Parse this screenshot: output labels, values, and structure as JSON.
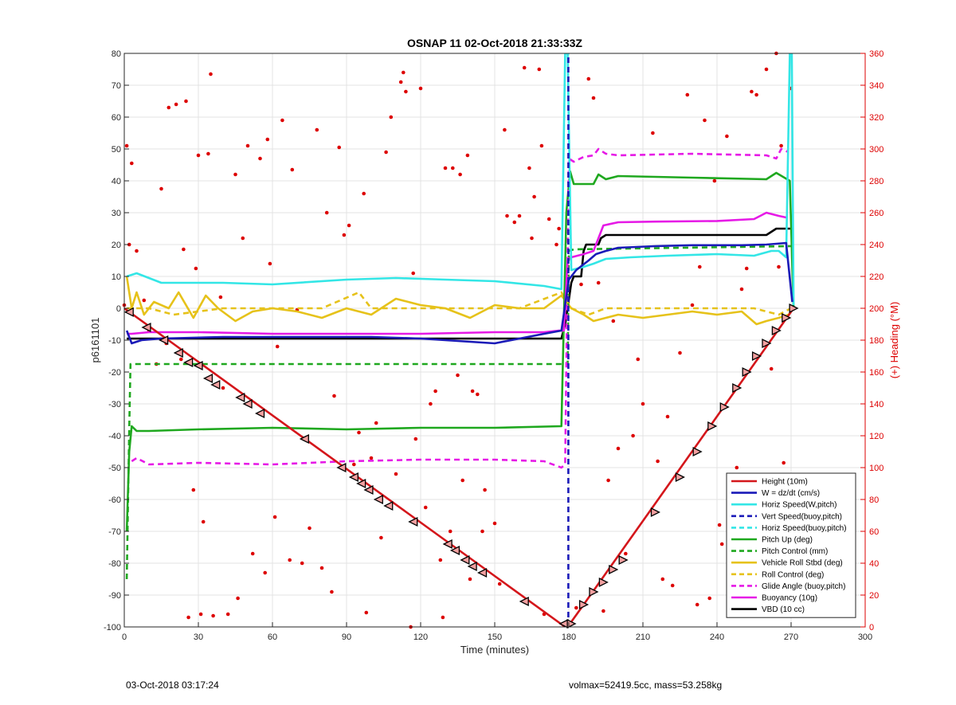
{
  "figure": {
    "footer_left": "03-Oct-2018 03:17:24",
    "footer_right": "volmax=52419.5cc, mass=53.258kg"
  },
  "chart_data": {
    "type": "line",
    "title": "OSNAP 11 02-Oct-2018 21:33:33Z",
    "xlabel": "Time (minutes)",
    "ylabel": "p6161101",
    "y2label": "(+) Heading (°M)",
    "xlim": [
      0,
      300
    ],
    "ylim": [
      -100,
      80
    ],
    "y2lim": [
      0,
      360
    ],
    "xticks": [
      0,
      30,
      60,
      90,
      120,
      150,
      180,
      210,
      240,
      270,
      300
    ],
    "yticks": [
      -100,
      -90,
      -80,
      -70,
      -60,
      -50,
      -40,
      -30,
      -20,
      -10,
      0,
      10,
      20,
      30,
      40,
      50,
      60,
      70,
      80
    ],
    "y2ticks": [
      0,
      20,
      40,
      60,
      80,
      100,
      120,
      140,
      160,
      180,
      200,
      220,
      240,
      260,
      280,
      300,
      320,
      340,
      360
    ],
    "grid": true,
    "legend_position": "bottom-right",
    "colors": {
      "height": "#d4161b",
      "w": "#1a1ab8",
      "horiz": "#33e6e6",
      "pitch": "#1fa81f",
      "roll": "#e6c21a",
      "glide": "#e61ae6",
      "vbd": "#000000",
      "heading": "#dd0000",
      "right_axis": "#dd0000"
    },
    "series": [
      {
        "name": "Height (10m)",
        "color": "#d4161b",
        "style": "solid",
        "x": [
          0,
          178.5,
          179.5,
          186,
          271
        ],
        "y": [
          0,
          -100,
          -100,
          -93,
          0
        ]
      },
      {
        "name": "W = dz/dt (cm/s)",
        "color": "#1a1ab8",
        "style": "solid",
        "x": [
          1,
          3,
          7,
          15,
          40,
          70,
          100,
          120,
          140,
          150,
          160,
          170,
          177,
          180,
          183,
          188,
          191,
          195,
          200,
          215,
          230,
          250,
          260,
          268,
          270.5
        ],
        "y": [
          -7,
          -11,
          -10,
          -9.5,
          -9,
          -9,
          -9,
          -9.5,
          -10.5,
          -11,
          -9.5,
          -8,
          -7,
          9,
          12,
          15,
          17,
          18,
          19,
          19.5,
          19.8,
          19.8,
          20,
          20.5,
          2
        ]
      },
      {
        "name": "Horiz Speed(W,pitch)",
        "color": "#33e6e6",
        "style": "solid",
        "x": [
          1,
          5,
          15,
          40,
          60,
          90,
          110,
          130,
          150,
          170,
          177,
          178.5,
          179.5,
          181,
          186,
          190,
          195,
          205,
          220,
          240,
          255,
          262,
          265,
          268,
          269.5,
          270.3,
          271
        ],
        "y": [
          10,
          11,
          8,
          8,
          7.5,
          9,
          9.5,
          9,
          8.5,
          7,
          6,
          80,
          80,
          12,
          13,
          14,
          15.5,
          16,
          16.5,
          17,
          16.5,
          18,
          18,
          16,
          80,
          80,
          1
        ]
      },
      {
        "name": "Vert Speed(buoy,pitch)",
        "color": "#1a1ab8",
        "style": "dashed",
        "x": [
          179.8,
          179.8
        ],
        "y": [
          -100,
          80
        ]
      },
      {
        "name": "Horiz Speed(buoy,pitch)",
        "color": "#33e6e6",
        "style": "dashed",
        "x": [
          179.3,
          180.3
        ],
        "y": [
          80,
          80
        ]
      },
      {
        "name": "Pitch Up (deg)",
        "color": "#1fa81f",
        "style": "solid",
        "x": [
          1,
          2,
          3,
          5,
          10,
          30,
          60,
          90,
          120,
          150,
          177,
          179,
          180.5,
          182,
          186,
          190,
          192,
          195,
          200,
          230,
          260,
          264,
          269.5,
          271
        ],
        "y": [
          -70,
          -45,
          -37,
          -38.5,
          -38.5,
          -38,
          -37.5,
          -38,
          -37.5,
          -37.5,
          -37,
          30,
          43,
          39,
          39,
          39,
          42,
          40.5,
          41.5,
          41,
          40.5,
          42.5,
          40,
          0
        ]
      },
      {
        "name": "Pitch Control (mm)",
        "color": "#1fa81f",
        "style": "dashed",
        "x": [
          1,
          2,
          2.5,
          178,
          179.5,
          180,
          182,
          270
        ],
        "y": [
          -85,
          -38,
          -17.5,
          -17.5,
          -17.5,
          18,
          18.5,
          19.5
        ]
      },
      {
        "name": "Vehicle Roll Stbd (deg)",
        "color": "#e6c21a",
        "style": "solid",
        "x": [
          1,
          3,
          5,
          8,
          12,
          18,
          22,
          28,
          33,
          38,
          45,
          52,
          60,
          70,
          80,
          90,
          100,
          110,
          120,
          130,
          140,
          150,
          160,
          170,
          177,
          181,
          186,
          190,
          195,
          200,
          210,
          220,
          230,
          240,
          250,
          256,
          260,
          265,
          269,
          271
        ],
        "y": [
          10,
          0,
          5,
          -2,
          2,
          0,
          5,
          -3,
          4,
          0,
          -4,
          -1,
          0,
          -1,
          -3,
          0,
          -2,
          3,
          1,
          0,
          -3,
          1,
          0,
          0,
          4,
          0,
          -2,
          -4,
          -3,
          -2,
          -3,
          -2,
          -1,
          -2,
          -1,
          -5,
          -4,
          -3,
          -2,
          0
        ]
      },
      {
        "name": "Roll Control (deg)",
        "color": "#e6c21a",
        "style": "dashed",
        "x": [
          1,
          10,
          20,
          40,
          60,
          80,
          95,
          100,
          120,
          140,
          160,
          177,
          181,
          188,
          195,
          200,
          220,
          240,
          255,
          265,
          270
        ],
        "y": [
          0,
          0,
          -2,
          0,
          0,
          0,
          5,
          0,
          0,
          0,
          0,
          5,
          0,
          -2,
          0,
          0,
          0,
          0,
          0,
          -2,
          0
        ]
      },
      {
        "name": "Glide Angle (buoy,pitch)",
        "color": "#e61ae6",
        "style": "dashed",
        "x": [
          3,
          5,
          10,
          30,
          60,
          90,
          120,
          150,
          170,
          177,
          178.5,
          180,
          182,
          186,
          190,
          192,
          195,
          200,
          230,
          260,
          264,
          266,
          269
        ],
        "y": [
          -48,
          -47,
          -49,
          -48.5,
          -49,
          -48,
          -47.5,
          -47.5,
          -48,
          -50,
          -49,
          47,
          46,
          47.5,
          48,
          50,
          48.5,
          48,
          48.5,
          48,
          47,
          50,
          49
        ]
      },
      {
        "name": "Buoyancy (10g)",
        "color": "#e61ae6",
        "style": "solid",
        "x": [
          1,
          3,
          10,
          30,
          60,
          90,
          120,
          150,
          170,
          176,
          178,
          179.5,
          181,
          186,
          190,
          194,
          200,
          215,
          240,
          255,
          260,
          265,
          268
        ],
        "y": [
          -8,
          -8,
          -7.5,
          -7.5,
          -8,
          -8,
          -8,
          -7.5,
          -7.5,
          -7,
          -7,
          15,
          16,
          17,
          18,
          26,
          27,
          27.2,
          27.4,
          28,
          30,
          29,
          28.5
        ]
      },
      {
        "name": "VBD (10 cc)",
        "color": "#000000",
        "style": "solid",
        "x": [
          1,
          177,
          178.5,
          179.5,
          181,
          182,
          185,
          186,
          187,
          188,
          192,
          193,
          195,
          260,
          262,
          264,
          270
        ],
        "y": [
          -9.5,
          -9.5,
          -5,
          0,
          8,
          10,
          10,
          18,
          20,
          20,
          20,
          22,
          23,
          23,
          24,
          25,
          25
        ]
      },
      {
        "name": "",
        "color": "#d4161b",
        "style": "dashed",
        "x": [
          0,
          270
        ],
        "y": [
          -6.2,
          -6.2
        ]
      }
    ],
    "height_markers": {
      "left": [
        [
          2,
          -1.2
        ],
        [
          9,
          -6
        ],
        [
          16,
          -10
        ],
        [
          22,
          -14
        ],
        [
          26,
          -17
        ],
        [
          30,
          -18
        ],
        [
          34,
          -22
        ],
        [
          37,
          -24
        ],
        [
          47,
          -28
        ],
        [
          50,
          -30
        ],
        [
          55,
          -33
        ],
        [
          73,
          -41
        ],
        [
          88,
          -50
        ],
        [
          93,
          -53
        ],
        [
          96,
          -55
        ],
        [
          99,
          -57
        ],
        [
          103,
          -60
        ],
        [
          107,
          -62
        ],
        [
          117,
          -67
        ],
        [
          131,
          -74
        ],
        [
          134,
          -76
        ],
        [
          138,
          -79
        ],
        [
          141,
          -81
        ],
        [
          145,
          -83
        ],
        [
          162,
          -92
        ],
        [
          178,
          -99
        ]
      ],
      "right": [
        [
          181,
          -99
        ],
        [
          186,
          -93
        ],
        [
          190,
          -89
        ],
        [
          194,
          -86
        ],
        [
          198,
          -82
        ],
        [
          202,
          -79
        ],
        [
          215,
          -64
        ],
        [
          225,
          -53
        ],
        [
          232,
          -45
        ],
        [
          238,
          -37
        ],
        [
          243,
          -31
        ],
        [
          248,
          -25
        ],
        [
          252,
          -20
        ],
        [
          256,
          -15
        ],
        [
          260,
          -11
        ],
        [
          264,
          -7
        ],
        [
          268,
          -3
        ],
        [
          271,
          0
        ]
      ]
    },
    "heading_points": [
      [
        0,
        202
      ],
      [
        1,
        302
      ],
      [
        2,
        240
      ],
      [
        3,
        291
      ],
      [
        5,
        236
      ],
      [
        8,
        205
      ],
      [
        10,
        186
      ],
      [
        13,
        165
      ],
      [
        15,
        275
      ],
      [
        17,
        178
      ],
      [
        18,
        326
      ],
      [
        21,
        328
      ],
      [
        23,
        168
      ],
      [
        24,
        237
      ],
      [
        25,
        330
      ],
      [
        26,
        6
      ],
      [
        28,
        86
      ],
      [
        29,
        225
      ],
      [
        30,
        296
      ],
      [
        31,
        8
      ],
      [
        32,
        66
      ],
      [
        34,
        297
      ],
      [
        35,
        347
      ],
      [
        36,
        7
      ],
      [
        39,
        207
      ],
      [
        40,
        150
      ],
      [
        42,
        8
      ],
      [
        45,
        284
      ],
      [
        46,
        18
      ],
      [
        48,
        244
      ],
      [
        50,
        302
      ],
      [
        52,
        46
      ],
      [
        55,
        294
      ],
      [
        57,
        34
      ],
      [
        58,
        306
      ],
      [
        59,
        228
      ],
      [
        61,
        69
      ],
      [
        62,
        176
      ],
      [
        64,
        318
      ],
      [
        67,
        42
      ],
      [
        68,
        287
      ],
      [
        70,
        199
      ],
      [
        72,
        40
      ],
      [
        75,
        62
      ],
      [
        78,
        312
      ],
      [
        80,
        37
      ],
      [
        82,
        260
      ],
      [
        84,
        22
      ],
      [
        85,
        145
      ],
      [
        87,
        301
      ],
      [
        89,
        246
      ],
      [
        91,
        252
      ],
      [
        93,
        102
      ],
      [
        95,
        122
      ],
      [
        97,
        272
      ],
      [
        98,
        9
      ],
      [
        100,
        106
      ],
      [
        102,
        128
      ],
      [
        104,
        56
      ],
      [
        106,
        298
      ],
      [
        108,
        320
      ],
      [
        110,
        96
      ],
      [
        112,
        342
      ],
      [
        113,
        348
      ],
      [
        114,
        336
      ],
      [
        116,
        0
      ],
      [
        117,
        222
      ],
      [
        118,
        118
      ],
      [
        120,
        338
      ],
      [
        122,
        75
      ],
      [
        124,
        140
      ],
      [
        126,
        148
      ],
      [
        128,
        42
      ],
      [
        129,
        6
      ],
      [
        130,
        288
      ],
      [
        132,
        60
      ],
      [
        133,
        288
      ],
      [
        135,
        158
      ],
      [
        136,
        284
      ],
      [
        137,
        92
      ],
      [
        139,
        296
      ],
      [
        140,
        30
      ],
      [
        141,
        148
      ],
      [
        143,
        146
      ],
      [
        145,
        60
      ],
      [
        146,
        86
      ],
      [
        150,
        65
      ],
      [
        152,
        27
      ],
      [
        154,
        312
      ],
      [
        155,
        258
      ],
      [
        158,
        254
      ],
      [
        160,
        258
      ],
      [
        162,
        351
      ],
      [
        164,
        288
      ],
      [
        165,
        244
      ],
      [
        166,
        270
      ],
      [
        168,
        350
      ],
      [
        169,
        302
      ],
      [
        170,
        8
      ],
      [
        172,
        256
      ],
      [
        175,
        240
      ],
      [
        176,
        250
      ],
      [
        183,
        12
      ],
      [
        185,
        215
      ],
      [
        188,
        344
      ],
      [
        190,
        332
      ],
      [
        192,
        216
      ],
      [
        194,
        10
      ],
      [
        196,
        92
      ],
      [
        198,
        192
      ],
      [
        200,
        112
      ],
      [
        203,
        46
      ],
      [
        206,
        120
      ],
      [
        208,
        168
      ],
      [
        210,
        140
      ],
      [
        214,
        310
      ],
      [
        216,
        104
      ],
      [
        218,
        30
      ],
      [
        220,
        132
      ],
      [
        222,
        26
      ],
      [
        225,
        172
      ],
      [
        228,
        334
      ],
      [
        230,
        202
      ],
      [
        232,
        14
      ],
      [
        233,
        226
      ],
      [
        235,
        318
      ],
      [
        237,
        18
      ],
      [
        239,
        280
      ],
      [
        241,
        64
      ],
      [
        242,
        52
      ],
      [
        244,
        308
      ],
      [
        246,
        28
      ],
      [
        248,
        100
      ],
      [
        250,
        212
      ],
      [
        252,
        225
      ],
      [
        254,
        336
      ],
      [
        256,
        334
      ],
      [
        258,
        42
      ],
      [
        260,
        350
      ],
      [
        262,
        162
      ],
      [
        264,
        360
      ],
      [
        265,
        226
      ],
      [
        266,
        302
      ],
      [
        267,
        103
      ],
      [
        268,
        42
      ],
      [
        270,
        338
      ]
    ]
  }
}
